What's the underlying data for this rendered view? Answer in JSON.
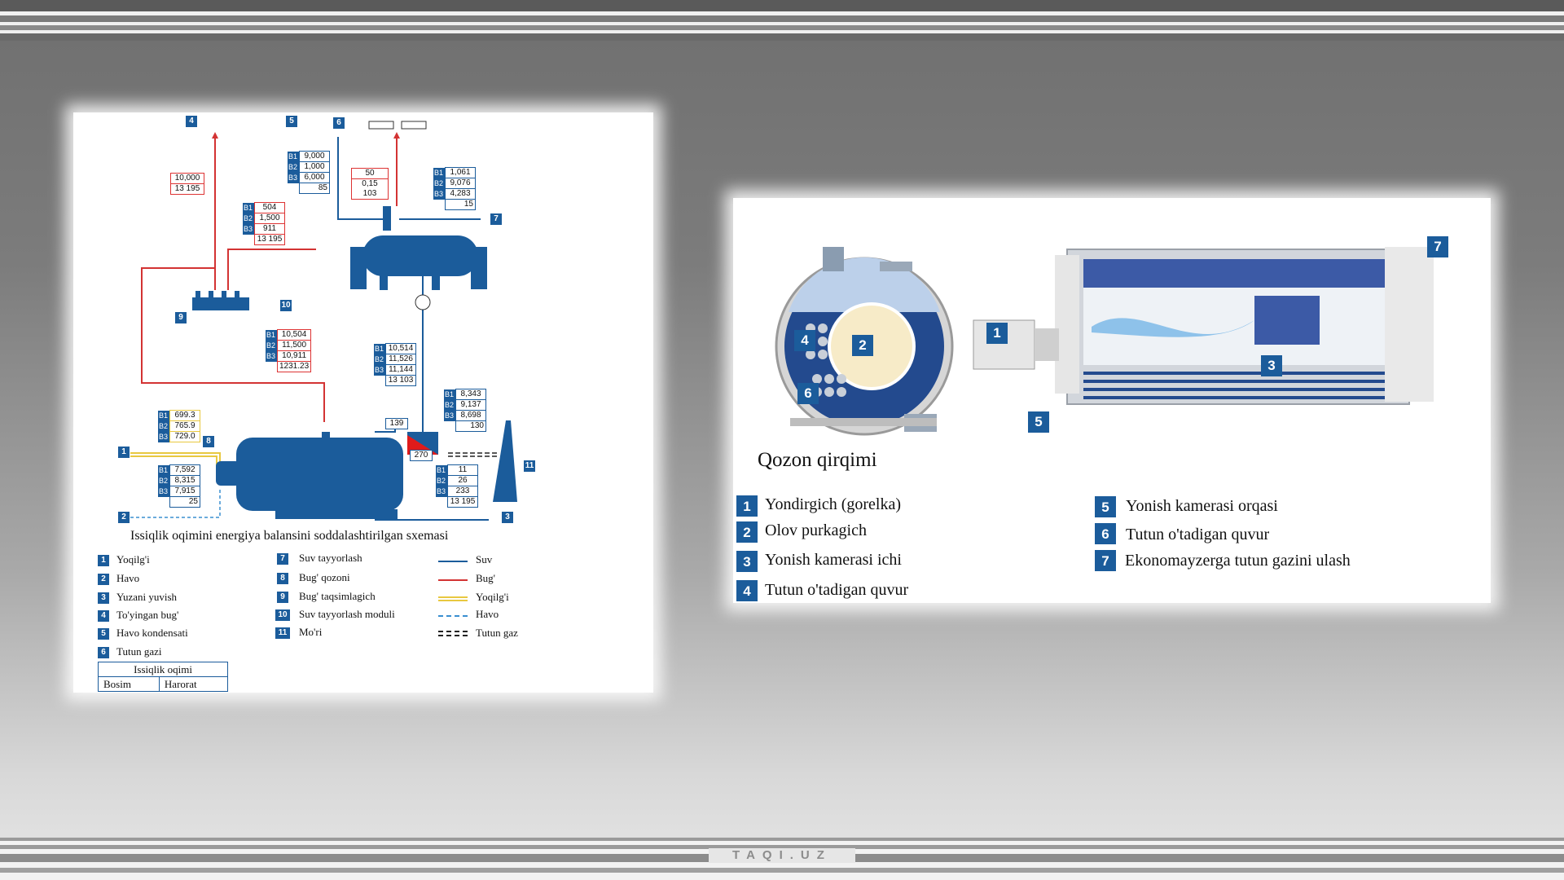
{
  "brand": "TAQI.UZ",
  "schema": {
    "title": "Issiqlik oqimini energiya balansini soddalashtirilgan sxemasi",
    "markers": [
      "1",
      "2",
      "3",
      "4",
      "5",
      "6",
      "7",
      "8",
      "9",
      "10",
      "11"
    ],
    "tables": {
      "t5": [
        [
          "B1",
          "9,000"
        ],
        [
          "B2",
          "1,000"
        ],
        [
          "B3",
          "6,000"
        ],
        [
          "",
          "85"
        ]
      ],
      "t6": [
        [
          "B1",
          "1,061"
        ],
        [
          "B2",
          "9,076"
        ],
        [
          "B3",
          "4,283"
        ],
        [
          "",
          "15"
        ]
      ],
      "t9": [
        [
          "B1",
          "504"
        ],
        [
          "B2",
          "1,500"
        ],
        [
          "B3",
          "911"
        ],
        [
          "",
          "13 195"
        ]
      ],
      "t8": [
        [
          "B1",
          "10,504"
        ],
        [
          "B2",
          "11,500"
        ],
        [
          "B3",
          "10,911"
        ],
        [
          "",
          "1231.23"
        ]
      ],
      "t10": [
        [
          "B1",
          "10,514"
        ],
        [
          "B2",
          "11,526"
        ],
        [
          "B3",
          "11,144"
        ],
        [
          "",
          "13 103"
        ]
      ],
      "tfuel": [
        [
          "B1",
          "699.3"
        ],
        [
          "B2",
          "765.9"
        ],
        [
          "B3",
          "729.0"
        ]
      ],
      "tstack": [
        [
          "B1",
          "8,343"
        ],
        [
          "B2",
          "9,137"
        ],
        [
          "B3",
          "8,698"
        ],
        [
          "",
          "130"
        ]
      ],
      "tair": [
        [
          "B1",
          "7,592"
        ],
        [
          "B2",
          "8,315"
        ],
        [
          "B3",
          "7,915"
        ],
        [
          "",
          "25"
        ]
      ],
      "tout": [
        [
          "B1",
          "11"
        ],
        [
          "B2",
          "26"
        ],
        [
          "B3",
          "233"
        ],
        [
          "",
          "13 195"
        ]
      ]
    },
    "steam_box": [
      "10,000",
      "13   195"
    ],
    "vent_box": [
      "50",
      "0,15 103"
    ],
    "val_139": "139",
    "val_270": "270",
    "legend_left": [
      {
        "n": "1",
        "t": "Yoqilg'i"
      },
      {
        "n": "2",
        "t": "Havo"
      },
      {
        "n": "3",
        "t": "Yuzani yuvish"
      },
      {
        "n": "4",
        "t": "To'yingan bug'"
      },
      {
        "n": "5",
        "t": "Havo kondensati"
      },
      {
        "n": "6",
        "t": "Tutun gazi"
      }
    ],
    "legend_mid": [
      {
        "n": "7",
        "t": "Suv tayyorlash"
      },
      {
        "n": "8",
        "t": "Bug' qozoni"
      },
      {
        "n": "9",
        "t": "Bug' taqsimlagich"
      },
      {
        "n": "10",
        "t": "Suv tayyorlash moduli"
      },
      {
        "n": "11",
        "t": "Mo'ri"
      }
    ],
    "legend_lines": [
      {
        "t": "Suv",
        "color": "#1b5c9b",
        "style": "solid"
      },
      {
        "t": "Bug'",
        "color": "#d33333",
        "style": "solid"
      },
      {
        "t": "Yoqilg'i",
        "color": "#e8c840",
        "style": "double"
      },
      {
        "t": "Havo",
        "color": "#3a8fd0",
        "style": "dashed"
      },
      {
        "t": "Tutun gaz",
        "color": "#222222",
        "style": "gas"
      }
    ],
    "flow_table": {
      "title": "Issiqlik oqimi",
      "col1": "Bosim",
      "col2": "Harorat"
    }
  },
  "cutaway": {
    "title": "Qozon qirqimi",
    "items_left": [
      {
        "n": "1",
        "t": "Yondirgich (gorelka)"
      },
      {
        "n": "2",
        "t": "Olov purkagich"
      },
      {
        "n": "3",
        "t": "Yonish kamerasi ichi"
      },
      {
        "n": "4",
        "t": "Tutun o'tadigan quvur"
      }
    ],
    "items_right": [
      {
        "n": "5",
        "t": "Yonish kamerasi orqasi"
      },
      {
        "n": "6",
        "t": "Tutun o'tadigan quvur"
      },
      {
        "n": "7",
        "t": "Ekonomayzerga tutun gazini ulash"
      }
    ]
  },
  "colors": {
    "accent": "#1b5c9b",
    "steam": "#d33333",
    "fuel": "#e8c840"
  }
}
